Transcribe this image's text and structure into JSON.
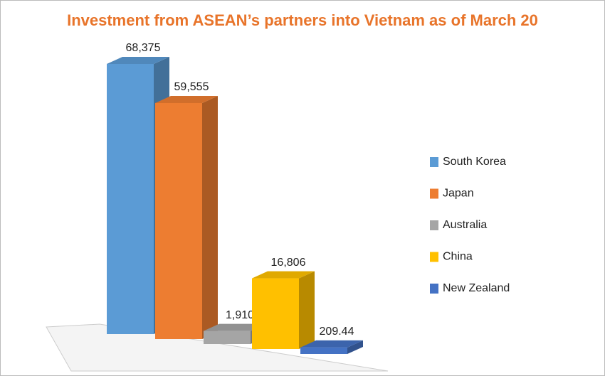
{
  "chart_data": {
    "type": "bar3d",
    "title": "Investment from ASEAN’s partners into Vietnam as of March 20",
    "categories": [
      "South Korea",
      "Japan",
      "Australia",
      "China",
      "New Zealand"
    ],
    "values": [
      68375,
      59555,
      1910,
      16806,
      209.44
    ],
    "value_labels": [
      "68,375",
      "59,555",
      "1,910",
      "16,806",
      "209.44"
    ],
    "colors": [
      "#5B9BD5",
      "#ED7D31",
      "#A5A5A5",
      "#FFC000",
      "#4472C4"
    ],
    "legend": "right"
  }
}
